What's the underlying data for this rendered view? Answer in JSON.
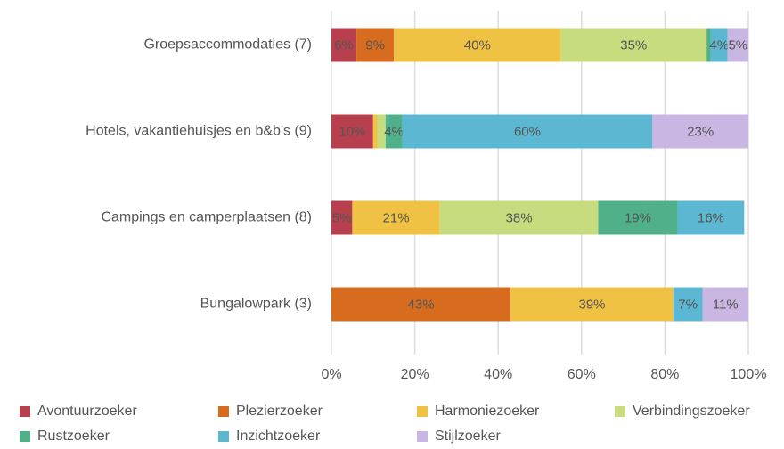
{
  "chart_data": {
    "type": "stacked-barh",
    "categories": [
      "Groepsaccommodaties (7)",
      "Hotels, vakantiehuisjes en b&b's (9)",
      "Campings en camperplaatsen (8)",
      "Bungalowpark (3)"
    ],
    "series": [
      {
        "name": "Avontuurzoeker",
        "color": "#b8404e",
        "values": [
          6,
          10,
          5,
          0
        ],
        "value_labels": [
          "6%",
          "10%",
          "5%",
          null
        ]
      },
      {
        "name": "Plezierzoeker",
        "color": "#d86c1e",
        "values": [
          9,
          0,
          0,
          43
        ],
        "value_labels": [
          "9%",
          null,
          null,
          "43%"
        ]
      },
      {
        "name": "Harmoniezoeker",
        "color": "#f0c244",
        "values": [
          40,
          1,
          21,
          39
        ],
        "value_labels": [
          "40%",
          null,
          "21%",
          "39%"
        ]
      },
      {
        "name": "Verbindingszoeker",
        "color": "#c6dc7e",
        "values": [
          35,
          2,
          38,
          0
        ],
        "value_labels": [
          "35%",
          null,
          "38%",
          null
        ]
      },
      {
        "name": "Rustzoeker",
        "color": "#4fb08a",
        "values": [
          1,
          4,
          19,
          0
        ],
        "value_labels": [
          null,
          "4%",
          "19%",
          null
        ]
      },
      {
        "name": "Inzichtzoeker",
        "color": "#5cb8d2",
        "values": [
          4,
          60,
          16,
          7
        ],
        "value_labels": [
          "4%",
          "60%",
          "16%",
          "7%"
        ]
      },
      {
        "name": "Stijlzoeker",
        "color": "#c9b6e2",
        "values": [
          5,
          23,
          0,
          11
        ],
        "value_labels": [
          "5%",
          "23%",
          null,
          "11%"
        ]
      }
    ],
    "xlim": [
      0,
      100
    ],
    "xticks": [
      {
        "value": 0,
        "label": "0%"
      },
      {
        "value": 20,
        "label": "20%"
      },
      {
        "value": 40,
        "label": "40%"
      },
      {
        "value": 60,
        "label": "60%"
      },
      {
        "value": 80,
        "label": "80%"
      },
      {
        "value": 100,
        "label": "100%"
      }
    ],
    "grid": true,
    "legend": "bottom"
  }
}
